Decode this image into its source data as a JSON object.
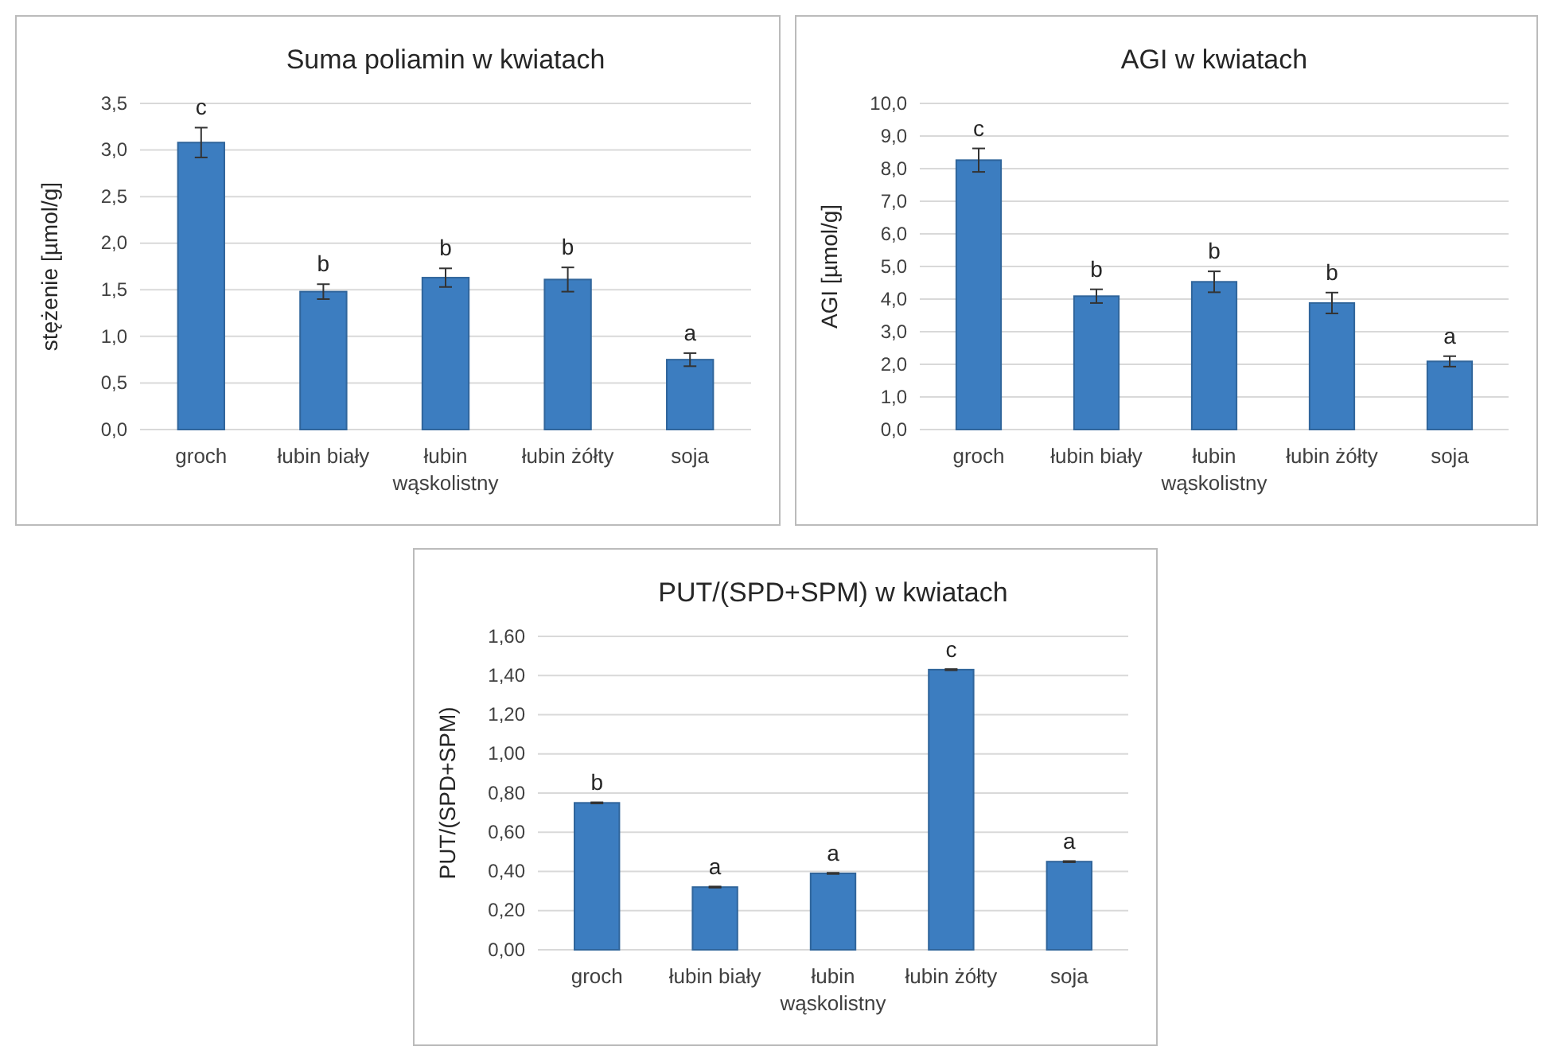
{
  "chart_data": [
    {
      "type": "bar",
      "title": "Suma poliamin w kwiatach",
      "ylabel": "stężenie [µmol/g]",
      "categories": [
        "groch",
        "łubin biały",
        "łubin wąskolistny",
        "łubin żółty",
        "soja"
      ],
      "values": [
        3.08,
        1.48,
        1.63,
        1.61,
        0.75
      ],
      "errors": [
        0.16,
        0.08,
        0.1,
        0.13,
        0.07
      ],
      "color": "#3c7dc0",
      "ylim": [
        0,
        3.5
      ],
      "yticks": [
        {
          "value": 0,
          "label": "0,0"
        },
        {
          "value": 0.5,
          "label": "0,5"
        },
        {
          "value": 1,
          "label": "1,0"
        },
        {
          "value": 1.5,
          "label": "1,5"
        },
        {
          "value": 2,
          "label": "2,0"
        },
        {
          "value": 2.5,
          "label": "2,5"
        },
        {
          "value": 3,
          "label": "3,0"
        },
        {
          "value": 3.5,
          "label": "3,5"
        }
      ],
      "grid": "y",
      "annotations": [
        {
          "text": "c",
          "x": "groch",
          "y": 3.24
        },
        {
          "text": "b",
          "x": "łubin biały",
          "y": 1.56
        },
        {
          "text": "b",
          "x": "łubin wąskolistny",
          "y": 1.73
        },
        {
          "text": "b",
          "x": "łubin żółty",
          "y": 1.74
        },
        {
          "text": "a",
          "x": "soja",
          "y": 0.82
        }
      ]
    },
    {
      "type": "bar",
      "title": "AGI w kwiatach",
      "ylabel": "AGI [µmol/g]",
      "categories": [
        "groch",
        "łubin biały",
        "łubin wąskolistny",
        "łubin żółty",
        "soja"
      ],
      "values": [
        8.26,
        4.09,
        4.53,
        3.88,
        2.09
      ],
      "errors": [
        0.36,
        0.21,
        0.32,
        0.32,
        0.16
      ],
      "color": "#3c7dc0",
      "ylim": [
        0,
        10
      ],
      "yticks": [
        {
          "value": 0,
          "label": "0,0"
        },
        {
          "value": 1,
          "label": "1,0"
        },
        {
          "value": 2,
          "label": "2,0"
        },
        {
          "value": 3,
          "label": "3,0"
        },
        {
          "value": 4,
          "label": "4,0"
        },
        {
          "value": 5,
          "label": "5,0"
        },
        {
          "value": 6,
          "label": "6,0"
        },
        {
          "value": 7,
          "label": "7,0"
        },
        {
          "value": 8,
          "label": "8,0"
        },
        {
          "value": 9,
          "label": "9,0"
        },
        {
          "value": 10,
          "label": "10,0"
        }
      ],
      "grid": "y",
      "annotations": [
        {
          "text": "c",
          "x": "groch",
          "y": 8.62
        },
        {
          "text": "b",
          "x": "łubin biały",
          "y": 4.3
        },
        {
          "text": "b",
          "x": "łubin wąskolistny",
          "y": 4.85
        },
        {
          "text": "b",
          "x": "łubin żółty",
          "y": 4.2
        },
        {
          "text": "a",
          "x": "soja",
          "y": 2.25
        }
      ]
    },
    {
      "type": "bar",
      "title": "PUT/(SPD+SPM) w kwiatach",
      "ylabel": "PUT/(SPD+SPM)",
      "categories": [
        "groch",
        "łubin biały",
        "łubin wąskolistny",
        "łubin żółty",
        "soja"
      ],
      "values": [
        0.75,
        0.32,
        0.39,
        1.43,
        0.45
      ],
      "errors": [
        0.003,
        0.003,
        0.003,
        0.003,
        0.003
      ],
      "color": "#3c7dc0",
      "ylim": [
        0,
        1.6
      ],
      "yticks": [
        {
          "value": 0,
          "label": "0,00"
        },
        {
          "value": 0.2,
          "label": "0,20"
        },
        {
          "value": 0.4,
          "label": "0,40"
        },
        {
          "value": 0.6,
          "label": "0,60"
        },
        {
          "value": 0.8,
          "label": "0,80"
        },
        {
          "value": 1,
          "label": "1,00"
        },
        {
          "value": 1.2,
          "label": "1,20"
        },
        {
          "value": 1.4,
          "label": "1,40"
        },
        {
          "value": 1.6,
          "label": "1,60"
        }
      ],
      "grid": "y",
      "annotations": [
        {
          "text": "b",
          "x": "groch",
          "y": 0.75
        },
        {
          "text": "a",
          "x": "łubin biały",
          "y": 0.32
        },
        {
          "text": "a",
          "x": "łubin wąskolistny",
          "y": 0.39
        },
        {
          "text": "c",
          "x": "łubin żółty",
          "y": 1.43
        },
        {
          "text": "a",
          "x": "soja",
          "y": 0.45
        }
      ]
    }
  ]
}
